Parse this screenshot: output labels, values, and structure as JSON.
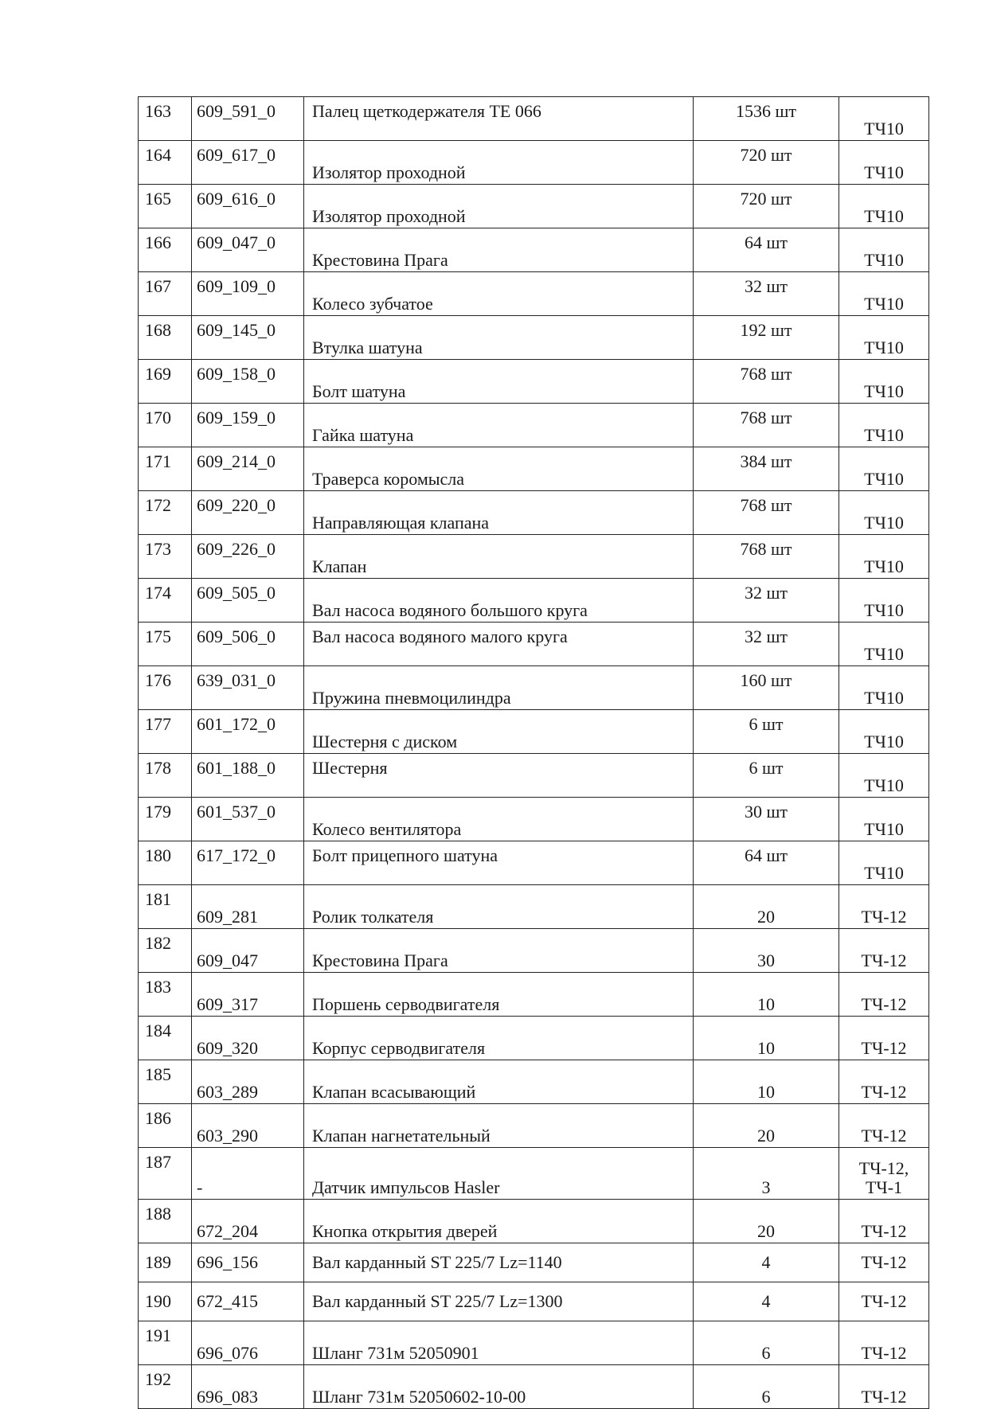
{
  "rows": [
    {
      "num": "163",
      "code": "609_591_0",
      "name": "Палец щеткодержателя ТЕ 066",
      "qty": "1536 шт",
      "dept": "ТЧ10",
      "va": [
        "t",
        "t",
        "t",
        "t",
        "b"
      ]
    },
    {
      "num": "164",
      "code": "609_617_0",
      "name": "Изолятор проходной",
      "qty": "720 шт",
      "dept": "ТЧ10",
      "va": [
        "t",
        "t",
        "b",
        "t",
        "b"
      ]
    },
    {
      "num": "165",
      "code": "609_616_0",
      "name": "Изолятор проходной",
      "qty": "720 шт",
      "dept": "ТЧ10",
      "va": [
        "t",
        "t",
        "b",
        "t",
        "b"
      ]
    },
    {
      "num": "166",
      "code": "609_047_0",
      "name": "Крестовина Прага",
      "qty": "64 шт",
      "dept": "ТЧ10",
      "va": [
        "t",
        "t",
        "b",
        "t",
        "b"
      ]
    },
    {
      "num": "167",
      "code": "609_109_0",
      "name": "Колесо зубчатое",
      "qty": "32 шт",
      "dept": "ТЧ10",
      "va": [
        "t",
        "t",
        "b",
        "t",
        "b"
      ]
    },
    {
      "num": "168",
      "code": "609_145_0",
      "name": "Втулка шатуна",
      "qty": "192 шт",
      "dept": "ТЧ10",
      "va": [
        "t",
        "t",
        "b",
        "t",
        "b"
      ]
    },
    {
      "num": "169",
      "code": "609_158_0",
      "name": "Болт шатуна",
      "qty": "768 шт",
      "dept": "ТЧ10",
      "va": [
        "t",
        "t",
        "b",
        "t",
        "b"
      ]
    },
    {
      "num": "170",
      "code": "609_159_0",
      "name": "Гайка шатуна",
      "qty": "768 шт",
      "dept": "ТЧ10",
      "va": [
        "t",
        "t",
        "b",
        "t",
        "b"
      ]
    },
    {
      "num": "171",
      "code": "609_214_0",
      "name": "Траверса коромысла",
      "qty": "384 шт",
      "dept": "ТЧ10",
      "va": [
        "t",
        "t",
        "b",
        "t",
        "b"
      ]
    },
    {
      "num": "172",
      "code": "609_220_0",
      "name": "Направляющая клапана",
      "qty": "768 шт",
      "dept": "ТЧ10",
      "va": [
        "t",
        "t",
        "b",
        "t",
        "b"
      ]
    },
    {
      "num": "173",
      "code": "609_226_0",
      "name": "Клапан",
      "qty": "768 шт",
      "dept": "ТЧ10",
      "va": [
        "t",
        "t",
        "b",
        "t",
        "b"
      ]
    },
    {
      "num": "174",
      "code": "609_505_0",
      "name": "Вал насоса водяного большого круга",
      "qty": "32 шт",
      "dept": "ТЧ10",
      "va": [
        "t",
        "t",
        "b",
        "t",
        "b"
      ]
    },
    {
      "num": "175",
      "code": "609_506_0",
      "name": "Вал насоса водяного малого круга",
      "qty": "32 шт",
      "dept": "ТЧ10",
      "va": [
        "t",
        "t",
        "t",
        "t",
        "b"
      ]
    },
    {
      "num": "176",
      "code": "639_031_0",
      "name": "Пружина пневмоцилиндра",
      "qty": "160 шт",
      "dept": "ТЧ10",
      "va": [
        "t",
        "t",
        "b",
        "t",
        "b"
      ]
    },
    {
      "num": "177",
      "code": "601_172_0",
      "name": "Шестерня с диском",
      "qty": "6 шт",
      "dept": "ТЧ10",
      "va": [
        "t",
        "t",
        "b",
        "t",
        "b"
      ]
    },
    {
      "num": "178",
      "code": "601_188_0",
      "name": "Шестерня",
      "qty": "6 шт",
      "dept": "ТЧ10",
      "va": [
        "t",
        "t",
        "t",
        "t",
        "b"
      ]
    },
    {
      "num": "179",
      "code": "601_537_0",
      "name": "Колесо вентилятора",
      "qty": "30 шт",
      "dept": "ТЧ10",
      "va": [
        "t",
        "t",
        "b",
        "t",
        "b"
      ]
    },
    {
      "num": "180",
      "code": "617_172_0",
      "name": "Болт прицепного шатуна",
      "qty": "64 шт",
      "dept": "ТЧ10",
      "va": [
        "t",
        "t",
        "t",
        "t",
        "b"
      ]
    },
    {
      "num": "181",
      "code": "609_281",
      "name": "Ролик толкателя",
      "qty": "20",
      "dept": "ТЧ-12",
      "va": [
        "t",
        "b",
        "b",
        "b",
        "b"
      ]
    },
    {
      "num": "182",
      "code": "609_047",
      "name": "Крестовина Прага",
      "qty": "30",
      "dept": "ТЧ-12",
      "va": [
        "t",
        "b",
        "b",
        "b",
        "b"
      ]
    },
    {
      "num": "183",
      "code": "609_317",
      "name": "Поршень серводвигателя",
      "qty": "10",
      "dept": "ТЧ-12",
      "va": [
        "t",
        "b",
        "b",
        "b",
        "b"
      ]
    },
    {
      "num": "184",
      "code": "609_320",
      "name": "Корпус серводвигателя",
      "qty": "10",
      "dept": "ТЧ-12",
      "va": [
        "t",
        "b",
        "b",
        "b",
        "b"
      ]
    },
    {
      "num": "185",
      "code": "603_289",
      "name": "Клапан всасывающий",
      "qty": "10",
      "dept": "ТЧ-12",
      "va": [
        "t",
        "b",
        "b",
        "b",
        "b"
      ]
    },
    {
      "num": "186",
      "code": "603_290",
      "name": "Клапан нагнетательный",
      "qty": "20",
      "dept": "ТЧ-12",
      "va": [
        "t",
        "b",
        "b",
        "b",
        "b"
      ]
    },
    {
      "num": "187",
      "code": "-",
      "name": "Датчик импульсов Hasler",
      "qty": "3",
      "dept": "ТЧ-12, ТЧ-1",
      "va": [
        "t",
        "b",
        "b",
        "b",
        "b"
      ],
      "tall": true
    },
    {
      "num": "188",
      "code": "672_204",
      "name": "Кнопка открытия дверей",
      "qty": "20",
      "dept": "ТЧ-12",
      "va": [
        "t",
        "b",
        "b",
        "b",
        "b"
      ]
    },
    {
      "num": "189",
      "code": "696_156",
      "name": "Вал карданный ST 225/7 Lz=1140",
      "qty": "4",
      "dept": "ТЧ-12",
      "va": [
        "m",
        "m",
        "m",
        "m",
        "m"
      ]
    },
    {
      "num": "190",
      "code": "672_415",
      "name": "Вал карданный ST 225/7 Lz=1300",
      "qty": "4",
      "dept": "ТЧ-12",
      "va": [
        "m",
        "m",
        "m",
        "m",
        "m"
      ]
    },
    {
      "num": "191",
      "code": "696_076",
      "name": "Шланг  731м 52050901",
      "qty": "6",
      "dept": "ТЧ-12",
      "va": [
        "t",
        "b",
        "b",
        "b",
        "b"
      ]
    },
    {
      "num": "192",
      "code": "696_083",
      "name": "Шланг  731м 52050602-10-00",
      "qty": "6",
      "dept": "ТЧ-12",
      "va": [
        "t",
        "b",
        "b",
        "b",
        "b"
      ]
    }
  ]
}
